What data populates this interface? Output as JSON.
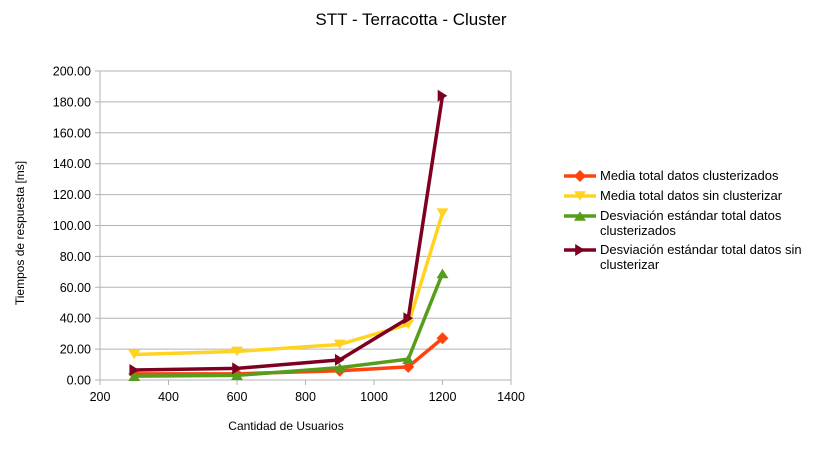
{
  "chart_data": {
    "type": "line",
    "title": "STT - Terracotta - Cluster",
    "xlabel": "Cantidad de Usuarios",
    "ylabel": "Tiempos de respuesta [ms]",
    "xlim": [
      200,
      1400
    ],
    "ylim": [
      0,
      200
    ],
    "x_ticks": [
      "200",
      "400",
      "600",
      "800",
      "1000",
      "1200",
      "1400"
    ],
    "y_ticks": [
      "0.00",
      "20.00",
      "40.00",
      "60.00",
      "80.00",
      "100.00",
      "120.00",
      "140.00",
      "160.00",
      "180.00",
      "200.00"
    ],
    "grid": "horizontal",
    "legend_position": "right",
    "series": [
      {
        "name": "Media total datos clusterizados",
        "color": "#ff420e",
        "marker": "diamond",
        "x": [
          300,
          600,
          900,
          1100,
          1200
        ],
        "y": [
          4,
          4,
          6,
          8.5,
          27
        ]
      },
      {
        "name": "Media total datos sin clusterizar",
        "color": "#ffd320",
        "marker": "triangle-down",
        "x": [
          300,
          600,
          900,
          1100,
          1200
        ],
        "y": [
          16.5,
          18.5,
          23,
          36,
          108
        ]
      },
      {
        "name": "Desviación estándar total datos clusterizados",
        "color": "#579d1c",
        "marker": "triangle-up",
        "x": [
          300,
          600,
          900,
          1100,
          1200
        ],
        "y": [
          2.5,
          3,
          8,
          13.5,
          69
        ]
      },
      {
        "name": "Desviación estándar total datos sin clusterizar",
        "color": "#7e0021",
        "marker": "triangle-right",
        "x": [
          300,
          600,
          900,
          1100,
          1200
        ],
        "y": [
          6.5,
          7.5,
          13,
          40,
          184
        ]
      }
    ]
  }
}
